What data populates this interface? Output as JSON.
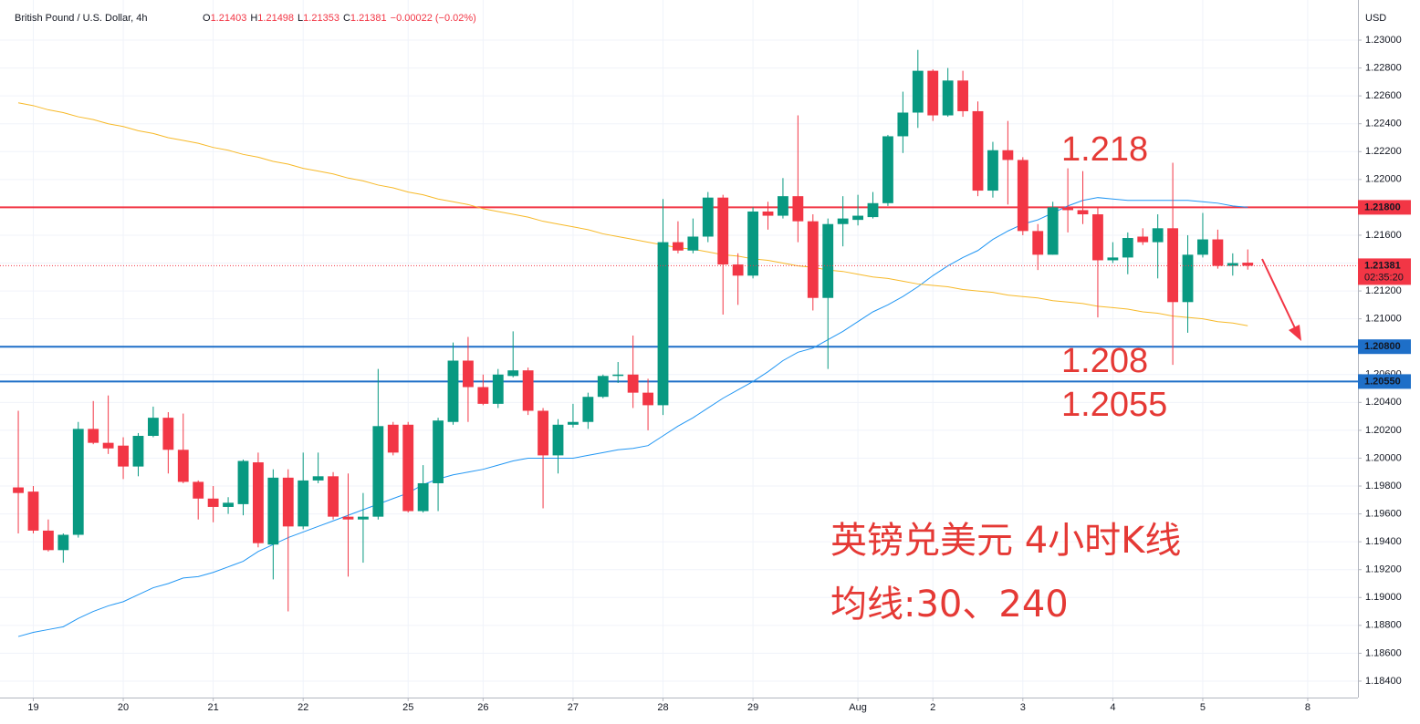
{
  "header": {
    "title": "British Pound / U.S. Dollar, 4h",
    "ohlc": [
      {
        "key": "O",
        "value": 1.21403
      },
      {
        "key": "H",
        "value": 1.21498
      },
      {
        "key": "L",
        "value": 1.21353
      },
      {
        "key": "C",
        "value": 1.21381
      }
    ],
    "change": "−0.00022 (−0.02%)"
  },
  "chart_data": {
    "type": "candlestick",
    "currency": "USD",
    "up_color": "#089981",
    "down_color": "#f23645",
    "grid": true,
    "xlim": [
      -1.22,
      89.35
    ],
    "xticks": [
      {
        "value": 1,
        "label": "19"
      },
      {
        "value": 7,
        "label": "20"
      },
      {
        "value": 13,
        "label": "21"
      },
      {
        "value": 19,
        "label": "22"
      },
      {
        "value": 26,
        "label": "25"
      },
      {
        "value": 31,
        "label": "26"
      },
      {
        "value": 37,
        "label": "27"
      },
      {
        "value": 43,
        "label": "28"
      },
      {
        "value": 49,
        "label": "29"
      },
      {
        "value": 56,
        "label": "Aug"
      },
      {
        "value": 61,
        "label": "2"
      },
      {
        "value": 67,
        "label": "3"
      },
      {
        "value": 73,
        "label": "4"
      },
      {
        "value": 79,
        "label": "5"
      },
      {
        "value": 86,
        "label": "8"
      }
    ],
    "ylim": [
      1.18282,
      1.23288
    ],
    "yticks": [
      {
        "value": 1.23,
        "label": "1.23000"
      },
      {
        "value": 1.228,
        "label": "1.22800"
      },
      {
        "value": 1.226,
        "label": "1.22600"
      },
      {
        "value": 1.224,
        "label": "1.22400"
      },
      {
        "value": 1.222,
        "label": "1.22200"
      },
      {
        "value": 1.22,
        "label": "1.22000"
      },
      {
        "value": 1.218,
        "label": "1.21800"
      },
      {
        "value": 1.216,
        "label": "1.21600"
      },
      {
        "value": 1.214,
        "label": "1.21400"
      },
      {
        "value": 1.212,
        "label": "1.21200"
      },
      {
        "value": 1.21,
        "label": "1.21000"
      },
      {
        "value": 1.208,
        "label": "1.20800"
      },
      {
        "value": 1.206,
        "label": "1.20600"
      },
      {
        "value": 1.204,
        "label": "1.20400"
      },
      {
        "value": 1.202,
        "label": "1.20200"
      },
      {
        "value": 1.2,
        "label": "1.20000"
      },
      {
        "value": 1.198,
        "label": "1.19800"
      },
      {
        "value": 1.196,
        "label": "1.19600"
      },
      {
        "value": 1.194,
        "label": "1.19400"
      },
      {
        "value": 1.192,
        "label": "1.19200"
      },
      {
        "value": 1.19,
        "label": "1.19000"
      },
      {
        "value": 1.188,
        "label": "1.18800"
      },
      {
        "value": 1.186,
        "label": "1.18600"
      },
      {
        "value": 1.184,
        "label": "1.18400"
      }
    ],
    "open": [
      1.1979,
      1.1976,
      1.1948,
      1.1934,
      1.1945,
      1.2021,
      1.2011,
      1.2009,
      1.1994,
      1.2016,
      1.2029,
      1.2006,
      1.1983,
      1.1971,
      1.1965,
      1.1967,
      1.1997,
      1.1938,
      1.1986,
      1.1951,
      1.1984,
      1.1987,
      1.1958,
      1.1956,
      1.1958,
      1.2024,
      1.2024,
      1.1962,
      1.1982,
      1.2026,
      1.207,
      1.2051,
      1.2039,
      1.2059,
      1.2063,
      1.2034,
      1.2002,
      1.2024,
      1.2026,
      1.2044,
      1.2059,
      1.206,
      1.2047,
      1.2038,
      1.2155,
      1.2149,
      1.2159,
      1.2187,
      1.2139,
      1.2131,
      1.2177,
      1.2174,
      1.2188,
      1.217,
      1.2115,
      1.2168,
      1.2171,
      1.2173,
      1.2183,
      1.2231,
      1.2248,
      1.2278,
      1.2246,
      1.2271,
      1.2249,
      1.2192,
      1.2221,
      1.2214,
      1.2163,
      1.2146,
      1.218,
      1.2178,
      1.2175,
      1.2142,
      1.2144,
      1.2159,
      1.2155,
      1.2165,
      1.2112,
      1.2146,
      1.2157,
      1.2138,
      1.21403
    ],
    "high": [
      1.2034,
      1.198,
      1.1956,
      1.1946,
      1.2026,
      1.2041,
      1.2045,
      1.2015,
      1.2018,
      1.2037,
      1.2033,
      1.2032,
      1.1984,
      1.198,
      1.1972,
      1.1999,
      1.2004,
      1.1992,
      1.1992,
      1.2004,
      1.2004,
      1.199,
      1.1989,
      1.1975,
      1.2064,
      1.2026,
      1.2026,
      1.1995,
      1.2029,
      1.2083,
      1.2087,
      1.206,
      1.2064,
      1.2091,
      1.2065,
      1.2036,
      1.2028,
      1.2039,
      1.2047,
      1.206,
      1.2069,
      1.2088,
      1.2057,
      1.2186,
      1.217,
      1.2172,
      1.2191,
      1.2189,
      1.2147,
      1.218,
      1.2184,
      1.2201,
      1.2246,
      1.2175,
      1.2172,
      1.2188,
      1.2189,
      1.2191,
      1.2232,
      1.2263,
      1.2293,
      1.2279,
      1.228,
      1.2278,
      1.2256,
      1.2227,
      1.2242,
      1.2216,
      1.2168,
      1.2184,
      1.2208,
      1.2206,
      1.218,
      1.2155,
      1.2162,
      1.2165,
      1.2175,
      1.2212,
      1.216,
      1.2176,
      1.2164,
      1.2147,
      1.21498
    ],
    "low": [
      1.1946,
      1.1946,
      1.1933,
      1.1925,
      1.1943,
      1.201,
      1.2003,
      1.1985,
      1.1987,
      1.2015,
      1.1989,
      1.1982,
      1.1956,
      1.1954,
      1.196,
      1.1959,
      1.1936,
      1.1913,
      1.189,
      1.1949,
      1.1982,
      1.1956,
      1.1915,
      1.1925,
      1.1956,
      1.2002,
      1.1961,
      1.1961,
      1.1962,
      1.2024,
      1.2026,
      1.2038,
      1.2036,
      1.2058,
      1.2031,
      1.1964,
      1.1989,
      1.2022,
      1.2021,
      1.2043,
      1.2054,
      1.2036,
      1.202,
      1.2031,
      1.2147,
      1.2147,
      1.2155,
      1.2103,
      1.211,
      1.2129,
      1.2164,
      1.2172,
      1.2155,
      1.2106,
      1.2064,
      1.2152,
      1.2167,
      1.2172,
      1.2181,
      1.2219,
      1.2237,
      1.2242,
      1.2245,
      1.2245,
      1.2188,
      1.2187,
      1.2182,
      1.216,
      1.2135,
      1.2146,
      1.2162,
      1.2168,
      1.2101,
      1.214,
      1.2132,
      1.2153,
      1.2129,
      1.2067,
      1.209,
      1.2144,
      1.2136,
      1.2131,
      1.21353
    ],
    "close": [
      1.1975,
      1.1948,
      1.1934,
      1.1945,
      1.2021,
      1.2011,
      1.2007,
      1.1994,
      1.2016,
      1.2029,
      1.2006,
      1.1983,
      1.1971,
      1.1965,
      1.1968,
      1.1998,
      1.1939,
      1.1986,
      1.1951,
      1.1984,
      1.1987,
      1.1958,
      1.1956,
      1.1958,
      1.2023,
      1.2004,
      1.1962,
      1.1982,
      1.2027,
      1.207,
      1.2051,
      1.2039,
      1.206,
      1.2063,
      1.2034,
      1.2002,
      1.2024,
      1.2026,
      1.2044,
      1.2059,
      1.206,
      1.2047,
      1.2038,
      1.2155,
      1.2149,
      1.2159,
      1.2187,
      1.2139,
      1.2131,
      1.2177,
      1.2174,
      1.2188,
      1.217,
      1.2115,
      1.2168,
      1.2172,
      1.2174,
      1.2183,
      1.2231,
      1.2248,
      1.2278,
      1.2246,
      1.2271,
      1.2249,
      1.2192,
      1.2221,
      1.2214,
      1.2163,
      1.2146,
      1.218,
      1.2178,
      1.2175,
      1.2142,
      1.2144,
      1.2158,
      1.2155,
      1.2165,
      1.2112,
      1.2146,
      1.2157,
      1.2138,
      1.214,
      1.21381
    ],
    "series": [
      {
        "color": "#2196f3",
        "values": [
          1.1872,
          1.1875,
          1.1877,
          1.1879,
          1.1885,
          1.189,
          1.1894,
          1.1897,
          1.1902,
          1.1907,
          1.191,
          1.1914,
          1.1915,
          1.1918,
          1.1922,
          1.1926,
          1.1933,
          1.1938,
          1.1943,
          1.1947,
          1.1951,
          1.1955,
          1.1959,
          1.1963,
          1.1967,
          1.1971,
          1.1975,
          1.1981,
          1.1985,
          1.1988,
          1.199,
          1.1992,
          1.1995,
          1.1998,
          1.2,
          1.2,
          1.2,
          1.2,
          1.2002,
          1.2004,
          1.2006,
          1.2007,
          1.2009,
          1.2016,
          1.2023,
          1.2029,
          1.2036,
          1.2043,
          1.2049,
          1.2055,
          1.2062,
          1.207,
          1.2076,
          1.2079,
          1.2085,
          1.2091,
          1.2098,
          1.2105,
          1.211,
          1.2116,
          1.2123,
          1.2131,
          1.2138,
          1.2144,
          1.2149,
          1.2157,
          1.2163,
          1.2168,
          1.2171,
          1.2176,
          1.2181,
          1.2185,
          1.2187,
          1.2186,
          1.2185,
          1.2185,
          1.2185,
          1.2185,
          1.2185,
          1.2184,
          1.2183,
          1.2181,
          1.218
        ]
      },
      {
        "color": "#f7b928",
        "values": [
          1.2255,
          1.2253,
          1.225,
          1.2248,
          1.2245,
          1.2243,
          1.224,
          1.2238,
          1.2235,
          1.2233,
          1.223,
          1.2228,
          1.2226,
          1.2223,
          1.2221,
          1.2218,
          1.2216,
          1.2213,
          1.2211,
          1.2208,
          1.2206,
          1.2204,
          1.2201,
          1.2199,
          1.2196,
          1.2194,
          1.2191,
          1.2189,
          1.2186,
          1.2184,
          1.2182,
          1.2179,
          1.2177,
          1.2175,
          1.2173,
          1.217,
          1.2168,
          1.2166,
          1.2164,
          1.2161,
          1.2159,
          1.2157,
          1.2155,
          1.2153,
          1.2151,
          1.215,
          1.2148,
          1.2146,
          1.2145,
          1.2143,
          1.2142,
          1.214,
          1.2138,
          1.2137,
          1.2135,
          1.2134,
          1.2132,
          1.213,
          1.2129,
          1.2127,
          1.2125,
          1.2124,
          1.2123,
          1.2121,
          1.212,
          1.2119,
          1.2117,
          1.2116,
          1.2115,
          1.2113,
          1.2112,
          1.2111,
          1.2109,
          1.2108,
          1.2107,
          1.2105,
          1.2104,
          1.2102,
          1.2101,
          1.21,
          1.2098,
          1.2097,
          1.2095
        ]
      }
    ],
    "hlines": [
      {
        "value": 1.218,
        "label": "1.21800",
        "color": "#f23645"
      },
      {
        "value": 1.208,
        "label": "1.20800",
        "color": "#1e6fc8"
      },
      {
        "value": 1.2055,
        "label": "1.20550",
        "color": "#1e6fc8"
      }
    ],
    "last_price": {
      "value": 1.21381,
      "label": "1.21381",
      "countdown": "02:35:20",
      "color": "#f23645"
    },
    "annotations": [
      "1.218",
      "1.208",
      "1.2055",
      "英镑兑美元 4小时K线",
      "均线:30、240"
    ]
  }
}
